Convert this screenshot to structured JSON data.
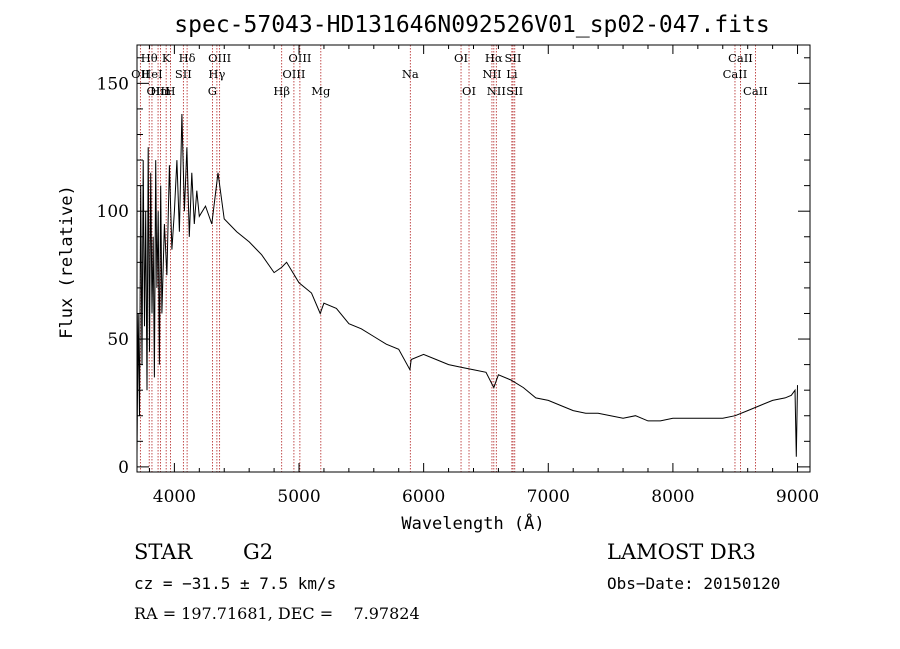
{
  "chart_data": {
    "type": "line",
    "title": "spec-57043-HD131646N092526V01_sp02-047.fits",
    "xlabel": "Wavelength (Å)",
    "ylabel": "Flux (relative)",
    "xlim": [
      3700,
      9100
    ],
    "ylim": [
      -2,
      165
    ],
    "x_ticks": [
      4000,
      5000,
      6000,
      7000,
      8000,
      9000
    ],
    "x_tick_labels": [
      "4000",
      "5000",
      "6000",
      "7000",
      "8000",
      "9000"
    ],
    "y_ticks": [
      0,
      50,
      100,
      150
    ],
    "y_tick_labels": [
      "0",
      "50",
      "100",
      "150"
    ],
    "series": [
      {
        "name": "flux",
        "color": "#000000",
        "x": [
          3700,
          3710,
          3720,
          3730,
          3740,
          3750,
          3760,
          3770,
          3780,
          3790,
          3800,
          3810,
          3820,
          3830,
          3840,
          3850,
          3860,
          3870,
          3880,
          3890,
          3900,
          3920,
          3940,
          3960,
          3980,
          4000,
          4020,
          4040,
          4060,
          4080,
          4100,
          4120,
          4140,
          4160,
          4180,
          4200,
          4250,
          4300,
          4350,
          4400,
          4500,
          4600,
          4700,
          4800,
          4860,
          4900,
          5000,
          5100,
          5170,
          5200,
          5300,
          5400,
          5500,
          5600,
          5700,
          5800,
          5890,
          5900,
          6000,
          6100,
          6200,
          6300,
          6400,
          6500,
          6563,
          6600,
          6700,
          6800,
          6900,
          7000,
          7100,
          7200,
          7300,
          7400,
          7500,
          7600,
          7700,
          7800,
          7900,
          8000,
          8100,
          8200,
          8300,
          8400,
          8500,
          8600,
          8700,
          8800,
          8900,
          8950,
          8980,
          8990,
          9000
        ],
        "y": [
          5,
          60,
          20,
          110,
          40,
          120,
          55,
          100,
          30,
          125,
          45,
          115,
          60,
          90,
          35,
          120,
          70,
          100,
          40,
          110,
          60,
          95,
          75,
          118,
          85,
          100,
          120,
          92,
          138,
          100,
          125,
          90,
          115,
          95,
          108,
          98,
          102,
          95,
          115,
          97,
          92,
          88,
          83,
          76,
          78,
          80,
          72,
          68,
          60,
          64,
          62,
          56,
          54,
          51,
          48,
          46,
          38,
          42,
          44,
          42,
          40,
          39,
          38,
          37,
          31,
          36,
          34,
          31,
          27,
          26,
          24,
          22,
          21,
          21,
          20,
          19,
          20,
          18,
          18,
          19,
          19,
          19,
          19,
          19,
          20,
          22,
          24,
          26,
          27,
          28,
          30,
          4,
          32
        ]
      }
    ],
    "spectral_lines": [
      {
        "label": "OII",
        "x": 3727,
        "row": 2
      },
      {
        "label": "Hθ",
        "x": 3798,
        "row": 1
      },
      {
        "label": "HeI",
        "x": 3820,
        "row": 2
      },
      {
        "label": "OIII",
        "x": 3869,
        "row": 3
      },
      {
        "label": "K",
        "x": 3934,
        "row": 1
      },
      {
        "label": "Hm",
        "x": 3889,
        "row": 3
      },
      {
        "label": "H",
        "x": 3969,
        "row": 3
      },
      {
        "label": "SII",
        "x": 4072,
        "row": 2
      },
      {
        "label": "Hδ",
        "x": 4102,
        "row": 1
      },
      {
        "label": "OIII",
        "x": 4363,
        "row": 1
      },
      {
        "label": "Hγ",
        "x": 4341,
        "row": 2
      },
      {
        "label": "G",
        "x": 4305,
        "row": 3
      },
      {
        "label": "Hβ",
        "x": 4861,
        "row": 3
      },
      {
        "label": "OIII",
        "x": 4959,
        "row": 2
      },
      {
        "label": "OIII",
        "x": 5007,
        "row": 1
      },
      {
        "label": "Mg",
        "x": 5175,
        "row": 3
      },
      {
        "label": "Na",
        "x": 5893,
        "row": 2
      },
      {
        "label": "OI",
        "x": 6300,
        "row": 1
      },
      {
        "label": "OI",
        "x": 6364,
        "row": 3
      },
      {
        "label": "Hα",
        "x": 6563,
        "row": 1
      },
      {
        "label": "NII",
        "x": 6548,
        "row": 2
      },
      {
        "label": "NII",
        "x": 6583,
        "row": 3
      },
      {
        "label": "SII",
        "x": 6717,
        "row": 1
      },
      {
        "label": "Li",
        "x": 6708,
        "row": 2
      },
      {
        "label": "SII",
        "x": 6731,
        "row": 3
      },
      {
        "label": "CaII",
        "x": 8542,
        "row": 1
      },
      {
        "label": "CaII",
        "x": 8498,
        "row": 2
      },
      {
        "label": "CaII",
        "x": 8662,
        "row": 3
      }
    ],
    "line_color": "#b22222"
  },
  "info": {
    "object_class": "STAR",
    "subclass": "G2",
    "survey": "LAMOST DR3",
    "cz": "cz = −31.5 ± 7.5 km/s",
    "obs_date": "Obs−Date: 20150120",
    "coords": "RA = 197.71681, DEC =    7.97824"
  }
}
